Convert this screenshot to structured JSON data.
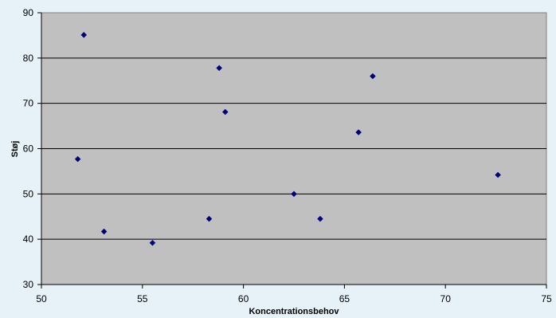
{
  "chart_data": {
    "type": "scatter",
    "title": "",
    "xlabel": "Koncentrationsbehov",
    "ylabel": "Støj",
    "xlim": [
      50,
      75
    ],
    "ylim": [
      30,
      90
    ],
    "xticks": [
      50,
      55,
      60,
      65,
      70,
      75
    ],
    "yticks": [
      30,
      40,
      50,
      60,
      70,
      80,
      90
    ],
    "grid": "horizontal",
    "legend": "none",
    "colors": {
      "plot_bg": "#c0c0c0",
      "page_bg": "#e6f1f8",
      "marker": "#000080",
      "grid": "#000000"
    },
    "points": [
      {
        "x": 52.1,
        "y": 85.1
      },
      {
        "x": 58.8,
        "y": 77.8
      },
      {
        "x": 66.4,
        "y": 76.0
      },
      {
        "x": 59.1,
        "y": 68.1
      },
      {
        "x": 65.7,
        "y": 63.6
      },
      {
        "x": 51.8,
        "y": 57.7
      },
      {
        "x": 72.6,
        "y": 54.2
      },
      {
        "x": 62.5,
        "y": 50.0
      },
      {
        "x": 58.3,
        "y": 44.5
      },
      {
        "x": 63.8,
        "y": 44.5
      },
      {
        "x": 53.1,
        "y": 41.7
      },
      {
        "x": 55.5,
        "y": 39.2
      }
    ]
  }
}
